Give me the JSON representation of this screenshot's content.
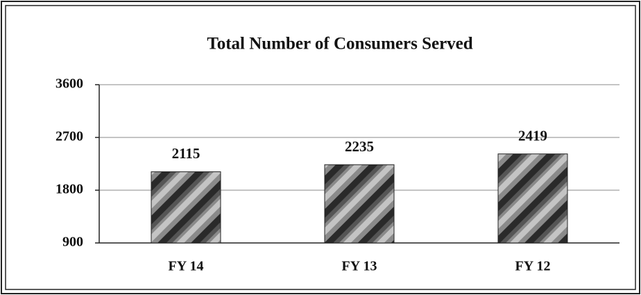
{
  "chart_data": {
    "type": "bar",
    "title": "Total Number of Consumers Served",
    "categories": [
      "FY 14",
      "FY 13",
      "FY 12"
    ],
    "values": [
      2115,
      2235,
      2419
    ],
    "ylim": [
      900,
      3600
    ],
    "yticks": [
      900,
      1800,
      2700,
      3600
    ],
    "grid": true
  }
}
